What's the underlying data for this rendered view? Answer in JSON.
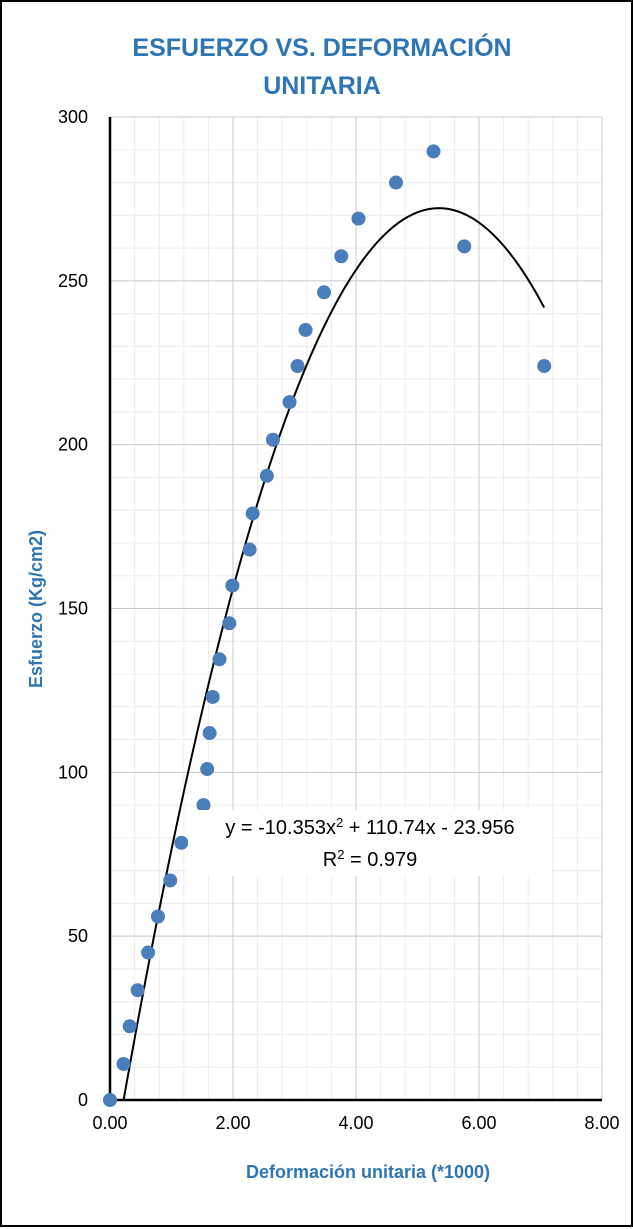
{
  "chart_data": {
    "type": "scatter",
    "title_line1": "ESFUERZO VS. DEFORMACIÓN",
    "title_line2": "UNITARIA",
    "xlabel": "Deformación unitaria (*1000)",
    "ylabel": "Esfuerzo (Kg/cm2)",
    "xlim": [
      0,
      8
    ],
    "ylim": [
      0,
      300
    ],
    "x_ticks": [
      "0.00",
      "2.00",
      "4.00",
      "6.00",
      "8.00"
    ],
    "y_ticks": [
      "0",
      "50",
      "100",
      "150",
      "200",
      "250",
      "300"
    ],
    "grid": true,
    "minor_grid": true,
    "colors": {
      "points": "#4a7ebb",
      "title": "#2e75b6",
      "trend": "#000000"
    },
    "points": [
      {
        "x": 0.0,
        "y": 0
      },
      {
        "x": 0.22,
        "y": 11
      },
      {
        "x": 0.32,
        "y": 22.5
      },
      {
        "x": 0.45,
        "y": 33.5
      },
      {
        "x": 0.62,
        "y": 45
      },
      {
        "x": 0.78,
        "y": 56
      },
      {
        "x": 0.98,
        "y": 67
      },
      {
        "x": 1.16,
        "y": 78.5
      },
      {
        "x": 1.52,
        "y": 90
      },
      {
        "x": 1.58,
        "y": 101
      },
      {
        "x": 1.62,
        "y": 112
      },
      {
        "x": 1.67,
        "y": 123
      },
      {
        "x": 1.78,
        "y": 134.5
      },
      {
        "x": 1.94,
        "y": 145.5
      },
      {
        "x": 1.99,
        "y": 157
      },
      {
        "x": 2.27,
        "y": 168
      },
      {
        "x": 2.32,
        "y": 179
      },
      {
        "x": 2.55,
        "y": 190.5
      },
      {
        "x": 2.65,
        "y": 201.5
      },
      {
        "x": 2.92,
        "y": 213
      },
      {
        "x": 3.05,
        "y": 224
      },
      {
        "x": 3.18,
        "y": 235
      },
      {
        "x": 3.48,
        "y": 246.5
      },
      {
        "x": 3.76,
        "y": 257.5
      },
      {
        "x": 4.04,
        "y": 269
      },
      {
        "x": 4.65,
        "y": 280
      },
      {
        "x": 5.26,
        "y": 289.5
      },
      {
        "x": 5.76,
        "y": 260.5
      },
      {
        "x": 7.06,
        "y": 224
      }
    ],
    "trendline": {
      "type": "polynomial",
      "a": -10.353,
      "b": 110.74,
      "c": -23.956,
      "x_range": [
        0.22,
        7.06
      ],
      "equation_prefix": "y = -10.353x",
      "equation_suffix": " + 110.74x - 23.956",
      "r2_prefix": "R",
      "r2_suffix": " = 0.979",
      "superscript": "2"
    }
  }
}
